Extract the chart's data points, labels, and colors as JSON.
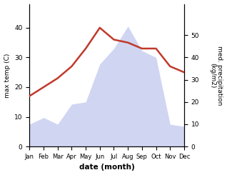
{
  "months": [
    "Jan",
    "Feb",
    "Mar",
    "Apr",
    "May",
    "Jun",
    "Jul",
    "Aug",
    "Sep",
    "Oct",
    "Nov",
    "Dec"
  ],
  "month_indices": [
    0,
    1,
    2,
    3,
    4,
    5,
    6,
    7,
    8,
    9,
    10,
    11
  ],
  "max_temp": [
    17,
    20,
    23,
    27,
    33,
    40,
    36,
    35,
    33,
    33,
    27,
    25
  ],
  "precipitation": [
    10,
    13,
    10,
    19,
    20,
    37,
    44,
    54,
    43,
    40,
    10,
    9
  ],
  "temp_ylim": [
    0,
    48
  ],
  "precip_ylim": [
    0,
    64
  ],
  "temp_color": "#c0392b",
  "precip_color": "#aab4e8",
  "precip_fill_alpha": 0.55,
  "xlabel": "date (month)",
  "ylabel_left": "max temp (C)",
  "ylabel_right": "med. precipitation\n(kg/m2)",
  "temp_yticks": [
    0,
    10,
    20,
    30,
    40
  ],
  "precip_yticks": [
    0,
    10,
    20,
    30,
    40,
    50
  ],
  "figsize": [
    3.18,
    2.45
  ],
  "dpi": 100
}
